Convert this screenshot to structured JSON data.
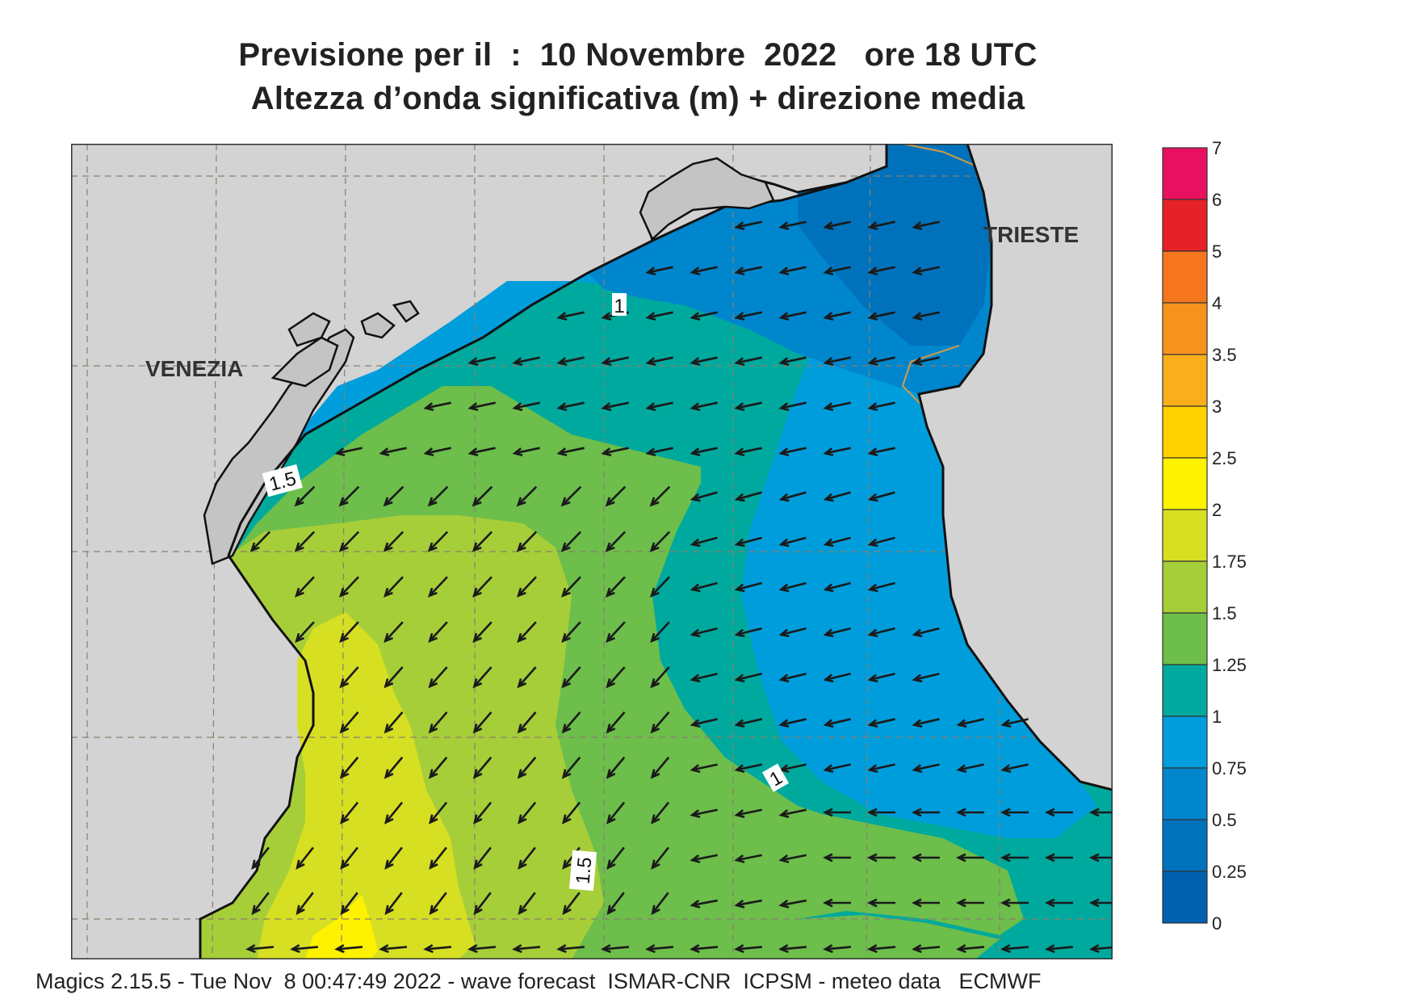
{
  "header": {
    "title_line1": "Previsione per il  :  10 Novembre  2022   ore 18 UTC",
    "title_line2": "Altezza d’onda significativa (m) + direzione media"
  },
  "map": {
    "city_labels": [
      "VENEZIA",
      "TRIESTE"
    ],
    "contour_labels": [
      "1",
      "1.5",
      "1",
      "1.5"
    ],
    "colors": {
      "land": "#d3d3d3",
      "grid": "#8a7e6e",
      "coast": "#111111",
      "border": "#c89a4a",
      "arrow": "#1a1a1a"
    }
  },
  "legend": {
    "labels": [
      "7",
      "6",
      "5",
      "4",
      "3.5",
      "3",
      "2.5",
      "2",
      "1.75",
      "1.5",
      "1.25",
      "1",
      "0.75",
      "0.5",
      "0.25",
      "0"
    ],
    "colors": [
      "#e8115f",
      "#e52227",
      "#f5761f",
      "#f7941d",
      "#f9ae1c",
      "#ffd200",
      "#fff200",
      "#d7df23",
      "#a6ce39",
      "#6dbe4b",
      "#00a99d",
      "#009ddc",
      "#0086cd",
      "#0072bc",
      "#0060b0"
    ]
  },
  "footer": {
    "text": "Magics 2.15.5 - Tue Nov  8 00:47:49 2022 - wave forecast  ISMAR-CNR  ICPSM - meteo data   ECMWF"
  }
}
